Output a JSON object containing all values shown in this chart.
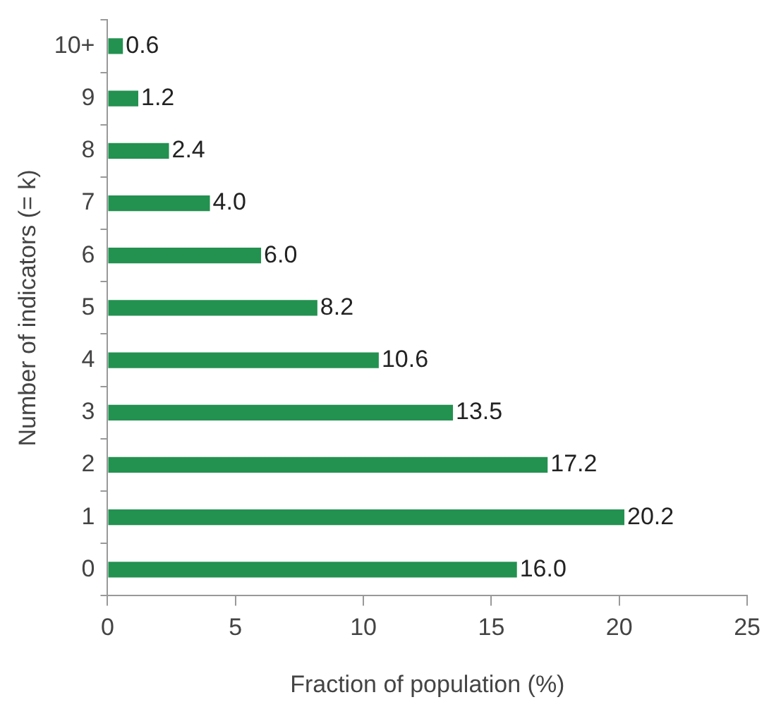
{
  "chart_data": {
    "type": "bar",
    "orientation": "horizontal",
    "xlabel": "Fraction of population (%)",
    "ylabel": "Number of indicators (= k)",
    "categories": [
      "10+",
      "9",
      "8",
      "7",
      "6",
      "5",
      "4",
      "3",
      "2",
      "1",
      "0"
    ],
    "values": [
      0.6,
      1.2,
      2.4,
      4.0,
      6.0,
      8.2,
      10.6,
      13.5,
      17.2,
      20.2,
      16.0
    ],
    "value_labels": [
      "0.6",
      "1.2",
      "2.4",
      "4.0",
      "6.0",
      "8.2",
      "10.6",
      "13.5",
      "17.2",
      "20.2",
      "16.0"
    ],
    "color": "#239150",
    "xlim": [
      0,
      25
    ],
    "xticks": [
      0,
      5,
      10,
      15,
      20,
      25
    ],
    "grid": false,
    "legend": false
  }
}
